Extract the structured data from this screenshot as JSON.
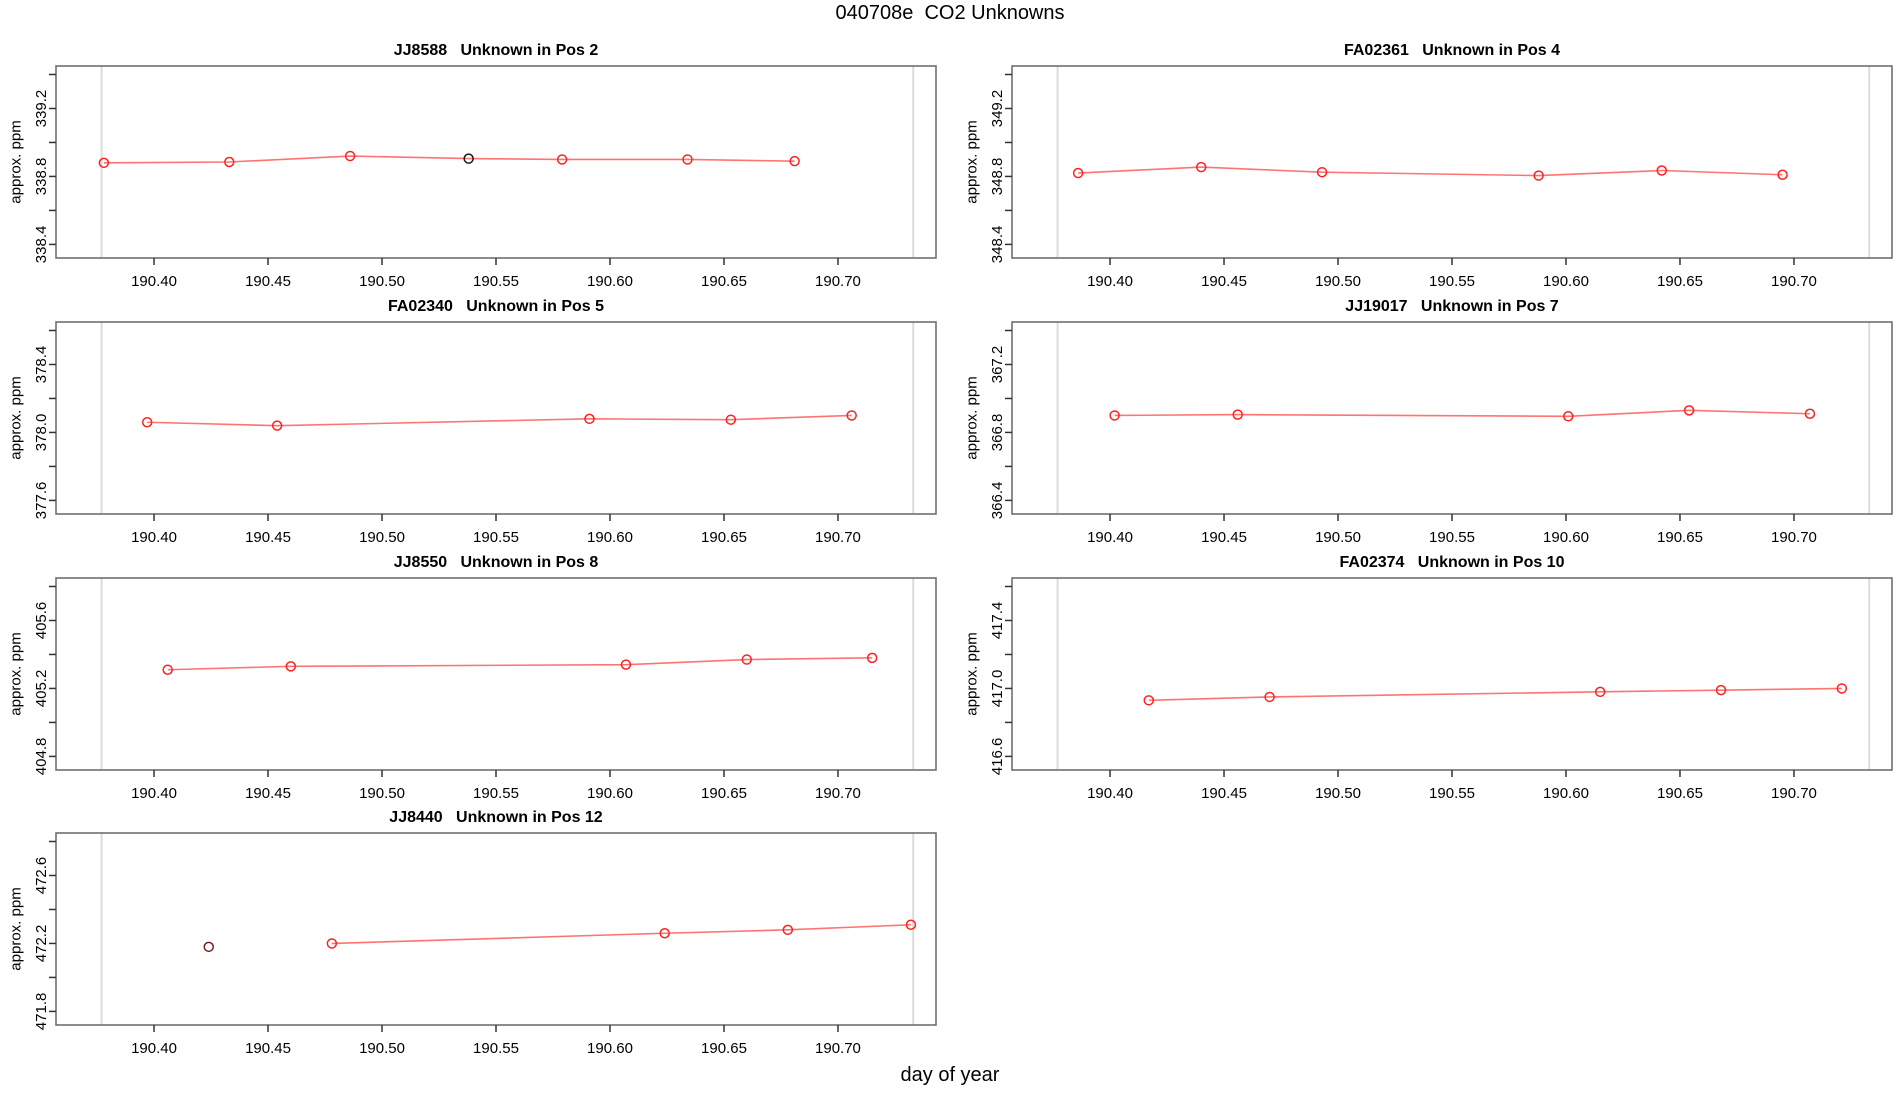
{
  "page_title": "040708e  CO2 Unknowns",
  "chart_data": {
    "type": "line",
    "title": "040708e  CO2 Unknowns",
    "xlabel": "day of year",
    "ylabel": "approx. ppm",
    "xlim": [
      190.357,
      190.743
    ],
    "xtick_labels": [
      "190.40",
      "190.45",
      "190.50",
      "190.55",
      "190.60",
      "190.65",
      "190.70"
    ],
    "xtick_values": [
      190.4,
      190.45,
      190.5,
      190.55,
      190.6,
      190.65,
      190.7
    ],
    "ref_lines_x": [
      190.377,
      190.733
    ],
    "colors": {
      "series_point": "#ff2020",
      "series_line": "rgba(255,0,0,0.55)",
      "point_black": "#1a1a1a",
      "point_dark_red": "#7b1e1e",
      "ref_line": "#dcdcdc",
      "box_border": "#666666",
      "tick": "#333333"
    },
    "legend": "none",
    "grid": "off",
    "panels": [
      {
        "title": "JJ8588   Unknown in Pos 2",
        "ylim": [
          338.32,
          339.45
        ],
        "yticks": [
          338.4,
          338.6,
          338.8,
          339.0,
          339.2,
          339.4
        ],
        "ytick_labels": [
          "338.4",
          "338.8",
          "339.2"
        ],
        "ytick_label_values": [
          338.4,
          338.8,
          339.2
        ],
        "points": [
          {
            "x": 190.378,
            "y": 338.88,
            "color": "#ff2020",
            "on_line": true
          },
          {
            "x": 190.433,
            "y": 338.885,
            "color": "#ff2020",
            "on_line": true
          },
          {
            "x": 190.486,
            "y": 338.92,
            "color": "#ff2020",
            "on_line": true
          },
          {
            "x": 190.538,
            "y": 338.905,
            "color": "#1a1a1a",
            "on_line": true
          },
          {
            "x": 190.579,
            "y": 338.9,
            "color": "#ff2020",
            "on_line": true
          },
          {
            "x": 190.634,
            "y": 338.9,
            "color": "#ff2020",
            "on_line": true
          },
          {
            "x": 190.681,
            "y": 338.89,
            "color": "#ff2020",
            "on_line": true
          }
        ]
      },
      {
        "title": "FA02361   Unknown in Pos 4",
        "ylim": [
          348.32,
          349.45
        ],
        "yticks": [
          348.4,
          348.6,
          348.8,
          349.0,
          349.2,
          349.4
        ],
        "ytick_labels": [
          "348.4",
          "348.8",
          "349.2"
        ],
        "ytick_label_values": [
          348.4,
          348.8,
          349.2
        ],
        "points": [
          {
            "x": 190.386,
            "y": 348.82,
            "color": "#ff2020",
            "on_line": true
          },
          {
            "x": 190.44,
            "y": 348.855,
            "color": "#ff2020",
            "on_line": true
          },
          {
            "x": 190.493,
            "y": 348.825,
            "color": "#ff2020",
            "on_line": true
          },
          {
            "x": 190.588,
            "y": 348.805,
            "color": "#ff2020",
            "on_line": true
          },
          {
            "x": 190.642,
            "y": 348.835,
            "color": "#ff2020",
            "on_line": true
          },
          {
            "x": 190.695,
            "y": 348.81,
            "color": "#ff2020",
            "on_line": true
          }
        ]
      },
      {
        "title": "FA02340   Unknown in Pos 5",
        "ylim": [
          377.52,
          378.65
        ],
        "yticks": [
          377.6,
          377.8,
          378.0,
          378.2,
          378.4,
          378.6
        ],
        "ytick_labels": [
          "377.6",
          "378.0",
          "378.4"
        ],
        "ytick_label_values": [
          377.6,
          378.0,
          378.4
        ],
        "points": [
          {
            "x": 190.397,
            "y": 378.06,
            "color": "#ff2020",
            "on_line": true
          },
          {
            "x": 190.454,
            "y": 378.04,
            "color": "#ff2020",
            "on_line": true
          },
          {
            "x": 190.591,
            "y": 378.08,
            "color": "#ff2020",
            "on_line": true
          },
          {
            "x": 190.653,
            "y": 378.075,
            "color": "#ff2020",
            "on_line": true
          },
          {
            "x": 190.706,
            "y": 378.1,
            "color": "#ff2020",
            "on_line": true
          }
        ]
      },
      {
        "title": "JJ19017   Unknown in Pos 7",
        "ylim": [
          366.32,
          367.45
        ],
        "yticks": [
          366.4,
          366.6,
          366.8,
          367.0,
          367.2,
          367.4
        ],
        "ytick_labels": [
          "366.4",
          "366.8",
          "367.2"
        ],
        "ytick_label_values": [
          366.4,
          366.8,
          367.2
        ],
        "points": [
          {
            "x": 190.402,
            "y": 366.9,
            "color": "#ff2020",
            "on_line": true
          },
          {
            "x": 190.456,
            "y": 366.905,
            "color": "#ff2020",
            "on_line": true
          },
          {
            "x": 190.601,
            "y": 366.895,
            "color": "#ff2020",
            "on_line": true
          },
          {
            "x": 190.654,
            "y": 366.93,
            "color": "#ff2020",
            "on_line": true
          },
          {
            "x": 190.707,
            "y": 366.91,
            "color": "#ff2020",
            "on_line": true
          }
        ]
      },
      {
        "title": "JJ8550   Unknown in Pos 8",
        "ylim": [
          404.72,
          405.85
        ],
        "yticks": [
          404.8,
          405.0,
          405.2,
          405.4,
          405.6,
          405.8
        ],
        "ytick_labels": [
          "404.8",
          "405.2",
          "405.6"
        ],
        "ytick_label_values": [
          404.8,
          405.2,
          405.6
        ],
        "points": [
          {
            "x": 190.406,
            "y": 405.31,
            "color": "#ff2020",
            "on_line": true
          },
          {
            "x": 190.46,
            "y": 405.33,
            "color": "#ff2020",
            "on_line": true
          },
          {
            "x": 190.607,
            "y": 405.34,
            "color": "#ff2020",
            "on_line": true
          },
          {
            "x": 190.66,
            "y": 405.37,
            "color": "#ff2020",
            "on_line": true
          },
          {
            "x": 190.715,
            "y": 405.38,
            "color": "#ff2020",
            "on_line": true
          }
        ]
      },
      {
        "title": "FA02374   Unknown in Pos 10",
        "ylim": [
          416.52,
          417.65
        ],
        "yticks": [
          416.6,
          416.8,
          417.0,
          417.2,
          417.4,
          417.6
        ],
        "ytick_labels": [
          "416.6",
          "417.0",
          "417.4"
        ],
        "ytick_label_values": [
          416.6,
          417.0,
          417.4
        ],
        "points": [
          {
            "x": 190.417,
            "y": 416.93,
            "color": "#ff2020",
            "on_line": true
          },
          {
            "x": 190.47,
            "y": 416.95,
            "color": "#ff2020",
            "on_line": true
          },
          {
            "x": 190.615,
            "y": 416.98,
            "color": "#ff2020",
            "on_line": true
          },
          {
            "x": 190.668,
            "y": 416.99,
            "color": "#ff2020",
            "on_line": true
          },
          {
            "x": 190.721,
            "y": 417.0,
            "color": "#ff2020",
            "on_line": true
          }
        ]
      },
      {
        "title": "JJ8440   Unknown in Pos 12",
        "ylim": [
          471.72,
          472.85
        ],
        "yticks": [
          471.8,
          472.0,
          472.2,
          472.4,
          472.6,
          472.8
        ],
        "ytick_labels": [
          "471.8",
          "472.2",
          "472.6"
        ],
        "ytick_label_values": [
          471.8,
          472.2,
          472.6
        ],
        "points": [
          {
            "x": 190.424,
            "y": 472.18,
            "color": "#7b1e1e",
            "on_line": false
          },
          {
            "x": 190.478,
            "y": 472.2,
            "color": "#ff2020",
            "on_line": true
          },
          {
            "x": 190.624,
            "y": 472.26,
            "color": "#ff2020",
            "on_line": true
          },
          {
            "x": 190.678,
            "y": 472.28,
            "color": "#ff2020",
            "on_line": true
          },
          {
            "x": 190.732,
            "y": 472.31,
            "color": "#ff2020",
            "on_line": true
          }
        ]
      }
    ]
  }
}
